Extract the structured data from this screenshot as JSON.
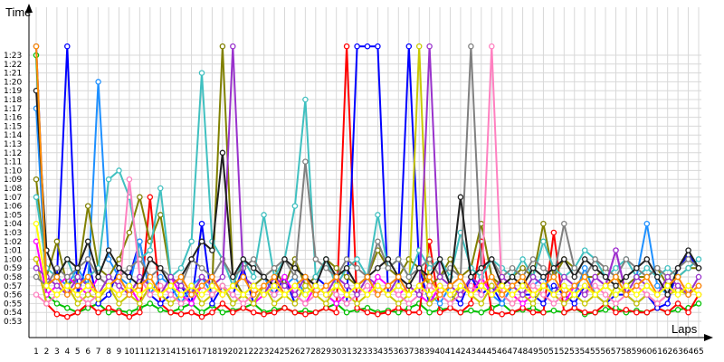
{
  "chart_data": {
    "type": "line",
    "xlabel": "Laps",
    "ylabel": "Time",
    "grid": true,
    "legend": "none",
    "xlim": [
      1,
      65
    ],
    "ylim_seconds": [
      52,
      84
    ],
    "x_ticks": [
      "1",
      "2",
      "3",
      "4",
      "5",
      "6",
      "7",
      "8",
      "9",
      "10",
      "11",
      "12",
      "13",
      "14",
      "15",
      "16",
      "17",
      "18",
      "19",
      "20",
      "21",
      "22",
      "23",
      "24",
      "25",
      "26",
      "27",
      "28",
      "29",
      "30",
      "31",
      "32",
      "33",
      "34",
      "35",
      "36",
      "37",
      "38",
      "39",
      "40",
      "41",
      "42",
      "43",
      "44",
      "45",
      "46",
      "47",
      "48",
      "49",
      "50",
      "51",
      "52",
      "53",
      "54",
      "55",
      "56",
      "57",
      "58",
      "59",
      "60",
      "61",
      "62",
      "63",
      "64",
      "65"
    ],
    "y_ticks": [
      "0:53",
      "0:54",
      "0:55",
      "0:56",
      "0:57",
      "0:58",
      "0:59",
      "1:00",
      "1:01",
      "1:02",
      "1:03",
      "1:04",
      "1:05",
      "1:06",
      "1:07",
      "1:08",
      "1:09",
      "1:10",
      "1:11",
      "1:12",
      "1:13",
      "1:14",
      "1:15",
      "1:16",
      "1:17",
      "1:18",
      "1:19",
      "1:20",
      "1:21",
      "1:22",
      "1:23"
    ],
    "y_tick_values": [
      53,
      54,
      55,
      56,
      57,
      58,
      59,
      60,
      61,
      62,
      63,
      64,
      65,
      66,
      67,
      68,
      69,
      70,
      71,
      72,
      73,
      74,
      75,
      76,
      77,
      78,
      79,
      80,
      81,
      82,
      83
    ],
    "series": [
      {
        "color": "#00c000",
        "values": [
          83,
          56,
          55,
          54.5,
          54,
          54.5,
          55,
          54,
          54.2,
          54,
          54.5,
          55,
          54.3,
          54,
          54.5,
          55,
          54,
          54.8,
          54,
          54.2,
          54.5,
          55,
          54,
          54.3,
          54.5,
          54,
          54.2,
          54,
          54.5,
          55,
          54,
          54.3,
          54.5,
          54,
          54.2,
          54,
          54.5,
          55,
          54,
          54.3,
          54.5,
          54,
          54.2,
          54,
          54.5,
          55,
          54,
          54.3,
          54.5,
          54,
          54.2,
          54,
          54.5,
          53.8,
          54,
          54.3,
          54.5,
          54,
          54.2,
          54,
          54.5,
          54,
          54.3,
          54.5,
          55
        ]
      },
      {
        "color": "#ff0000",
        "values": [
          60,
          55,
          53.8,
          53.5,
          54,
          55,
          54,
          54.5,
          54,
          53.5,
          54,
          67,
          55,
          54,
          53.8,
          54,
          53.5,
          54,
          55,
          54,
          54.5,
          54,
          53.8,
          54,
          54.5,
          54,
          53.8,
          54,
          54.5,
          54,
          84,
          54.5,
          54,
          53.8,
          54,
          54.5,
          54,
          54,
          62,
          54,
          54.5,
          54,
          55,
          62,
          54,
          53.8,
          54,
          54.5,
          54,
          54,
          63,
          54,
          54.5,
          54,
          54,
          55,
          54,
          54.3,
          54,
          54,
          54.5,
          54,
          55,
          54,
          56
        ]
      },
      {
        "color": "#0000ff",
        "values": [
          84,
          57,
          58,
          84,
          56,
          60,
          55,
          56,
          59,
          58,
          62,
          56,
          55,
          56,
          57,
          55,
          64,
          55,
          57,
          56,
          59,
          55,
          57,
          56,
          58,
          55,
          57,
          58,
          57,
          56,
          55,
          84,
          84,
          84,
          56,
          57,
          84,
          59,
          55,
          57,
          56,
          55,
          58,
          56,
          57,
          55,
          57,
          56,
          56,
          55,
          57,
          56,
          55,
          57,
          56,
          55,
          56,
          56,
          55,
          56,
          54.5,
          55,
          59,
          60.5,
          59
        ]
      },
      {
        "color": "#1e90ff",
        "values": [
          77,
          57,
          58,
          57,
          59,
          57,
          80,
          60,
          58,
          57,
          62,
          56,
          58,
          57,
          55,
          57,
          58,
          56,
          57,
          55,
          56,
          57,
          58,
          56,
          57,
          58,
          56,
          57,
          56,
          55,
          56,
          57,
          58,
          56,
          57,
          58,
          56,
          57,
          56,
          55,
          57,
          58,
          56,
          57,
          56,
          55,
          57,
          56,
          57,
          58,
          56,
          57,
          56,
          59,
          56,
          57,
          56,
          57,
          58,
          64,
          57,
          56,
          57,
          56,
          57
        ]
      },
      {
        "color": "#808000",
        "values": [
          69,
          58,
          62,
          57,
          58,
          66,
          59,
          58,
          60,
          63,
          67,
          62,
          65,
          58,
          57,
          56,
          58,
          57,
          84,
          58,
          56,
          57,
          58,
          59,
          57,
          60,
          57,
          58,
          60,
          59,
          58,
          57,
          58,
          61,
          59,
          58,
          60,
          59,
          57,
          58,
          60,
          58,
          59,
          64,
          58,
          57,
          58,
          59,
          58,
          64,
          58,
          60,
          59,
          58,
          58,
          59,
          58,
          57,
          58,
          58,
          59,
          57,
          58,
          59,
          59
        ]
      },
      {
        "color": "#ff00ff",
        "values": [
          62,
          56,
          57,
          58,
          57,
          56,
          58,
          57,
          56,
          57,
          55,
          57,
          56,
          58,
          56,
          55,
          57,
          58,
          56,
          57,
          56,
          55,
          56,
          57,
          58,
          56,
          55,
          57,
          56,
          55,
          56,
          57,
          56,
          58,
          57,
          56,
          57,
          56,
          55,
          57,
          56,
          57,
          56,
          58,
          56,
          57,
          56,
          55,
          56,
          57,
          56,
          55,
          57,
          56,
          58,
          57,
          61,
          56,
          57,
          56,
          55,
          56,
          57,
          56,
          57
        ]
      },
      {
        "color": "#c8c800",
        "values": [
          60,
          55,
          56,
          57,
          55,
          56,
          55.5,
          57,
          55,
          56,
          55,
          57,
          56,
          55,
          56,
          57,
          55,
          56,
          57,
          55,
          56,
          55,
          57,
          55,
          56,
          55,
          57,
          56,
          55,
          57,
          56,
          55,
          56,
          57,
          56,
          55,
          56,
          84,
          55,
          56,
          55,
          57,
          56,
          55,
          57,
          56,
          55,
          56,
          55,
          57,
          56,
          55,
          56,
          55,
          56,
          55,
          57,
          56,
          55,
          56,
          55,
          56,
          56.5,
          56,
          57
        ]
      },
      {
        "color": "#40c0c0",
        "values": [
          67,
          59,
          58,
          60,
          57,
          58,
          59,
          69,
          70,
          67,
          60,
          61,
          68,
          58,
          59,
          62,
          81,
          62,
          60,
          57,
          60,
          58,
          65,
          58,
          60,
          66,
          78,
          58,
          60,
          57,
          59,
          60,
          58,
          65,
          59,
          60,
          58,
          61,
          59,
          60,
          58,
          63,
          59,
          58,
          60,
          59,
          58,
          60,
          58,
          62,
          59,
          58,
          59,
          61,
          60,
          58,
          59,
          60,
          58,
          59,
          58,
          59,
          58,
          59,
          60
        ]
      },
      {
        "color": "#808080",
        "values": [
          58,
          57,
          59,
          58,
          59,
          60,
          58,
          57,
          58,
          59,
          60,
          58,
          59,
          58,
          57,
          60,
          59,
          58,
          60,
          58,
          59,
          60,
          58,
          59,
          60,
          58,
          71,
          60,
          59,
          58,
          60,
          59,
          58,
          62,
          59,
          60,
          58,
          59,
          60,
          58,
          59,
          58,
          84,
          59,
          60,
          58,
          59,
          58,
          60,
          59,
          58,
          64,
          59,
          58,
          60,
          59,
          58,
          60,
          59,
          58,
          59,
          58,
          59,
          60,
          59
        ]
      },
      {
        "color": "#ff80c0",
        "values": [
          56,
          55,
          56,
          57,
          56,
          55,
          56,
          57,
          56,
          69,
          58,
          56,
          57,
          56,
          55,
          56,
          57,
          56,
          57,
          56,
          55,
          56,
          57,
          56,
          57,
          56,
          55,
          56,
          57,
          56,
          55,
          56,
          57,
          56,
          57,
          56,
          55,
          56,
          57,
          56,
          55,
          56,
          57,
          56,
          84,
          56,
          55,
          56,
          57,
          56,
          55,
          56,
          57,
          56,
          57,
          56,
          55,
          56,
          57,
          56,
          55,
          56,
          57,
          56,
          57
        ]
      },
      {
        "color": "#9932cc",
        "values": [
          59,
          58,
          57,
          56,
          58,
          57,
          56,
          58,
          57,
          56,
          58,
          57,
          56,
          58,
          57,
          56,
          58,
          57,
          58,
          84,
          58,
          57,
          56,
          58,
          57,
          56,
          58,
          57,
          56,
          58,
          57,
          56,
          58,
          57,
          56,
          58,
          57,
          56,
          84,
          58,
          57,
          56,
          58,
          57,
          56,
          58,
          57,
          56,
          58,
          57,
          56,
          58,
          57,
          56,
          58,
          57,
          61,
          56,
          58,
          57,
          56,
          58,
          57,
          56,
          58
        ]
      },
      {
        "color": "#202020",
        "values": [
          79,
          61,
          58,
          60,
          59,
          62,
          58,
          61,
          59,
          58,
          57,
          60,
          59,
          57,
          58,
          60,
          62,
          61,
          72,
          58,
          60,
          59,
          58,
          57,
          60,
          59,
          58,
          57,
          60,
          58,
          59,
          57,
          58,
          59,
          60,
          58,
          57,
          59,
          58,
          60,
          57,
          67,
          58,
          59,
          60,
          57,
          58,
          57,
          59,
          58,
          59,
          60,
          58,
          60,
          59,
          58,
          57,
          58,
          59,
          60,
          58,
          56,
          59,
          61,
          59
        ]
      },
      {
        "color": "#ff8c00",
        "values": [
          84,
          57,
          58,
          56,
          57,
          58,
          56,
          57,
          58,
          56,
          57,
          58,
          56,
          57,
          58,
          56,
          57,
          58,
          56,
          57,
          58,
          56,
          57,
          58,
          56,
          57,
          58,
          56,
          57,
          58,
          56,
          57,
          58,
          56,
          57,
          58,
          56,
          57,
          58,
          56,
          57,
          58,
          56,
          57,
          58,
          56,
          57,
          58,
          56,
          57,
          58,
          56,
          57,
          58,
          56,
          57,
          58,
          56,
          57,
          58,
          56,
          57,
          58,
          56,
          57
        ]
      },
      {
        "color": "#ffff00",
        "values": [
          64,
          57,
          56,
          57,
          56,
          57,
          56,
          57,
          56,
          57,
          56,
          57,
          56,
          57,
          56,
          57,
          56,
          57,
          56,
          57,
          56,
          57,
          56,
          57,
          56,
          57,
          56,
          57,
          56,
          57,
          56,
          57,
          56,
          57,
          56,
          57,
          56,
          57,
          56,
          57,
          56,
          57,
          56,
          57,
          56,
          57,
          56,
          57,
          56,
          57,
          56,
          57,
          56,
          57,
          56,
          57,
          56,
          57,
          56,
          57,
          56,
          57,
          56,
          57,
          56
        ]
      }
    ]
  }
}
